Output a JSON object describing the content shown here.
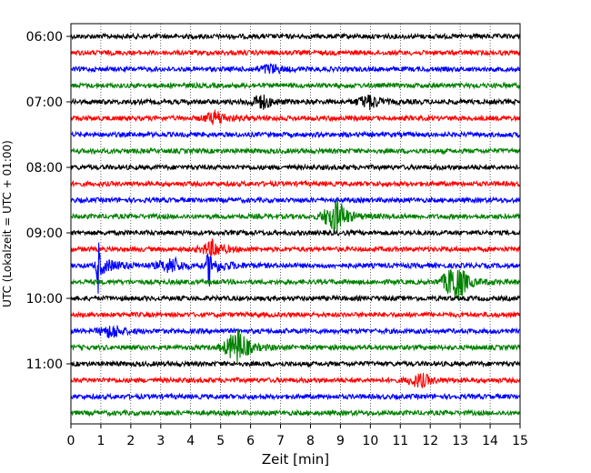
{
  "chart_data": {
    "type": "line",
    "subtype": "helicorder",
    "xlabel": "Zeit  [min]",
    "ylabel": "UTC (Lokalzeit = UTC + 01:00)",
    "xlim": [
      0,
      15
    ],
    "x_ticks": [
      0,
      1,
      2,
      3,
      4,
      5,
      6,
      7,
      8,
      9,
      10,
      11,
      12,
      13,
      14,
      15
    ],
    "x_tick_labels": [
      "0",
      "1",
      "2",
      "3",
      "4",
      "5",
      "6",
      "7",
      "8",
      "9",
      "10",
      "11",
      "12",
      "13",
      "14",
      "15"
    ],
    "x_grid": "dotted vertical at each minute",
    "y_tick_labels": [
      "06:00",
      "07:00",
      "08:00",
      "09:00",
      "10:00",
      "11:00"
    ],
    "trace_colors": [
      "#000000",
      "#ff0000",
      "#0000ff",
      "#008000"
    ],
    "traces": [
      {
        "start": "06:00",
        "color": "#000000",
        "events": []
      },
      {
        "start": "06:15",
        "color": "#ff0000",
        "events": []
      },
      {
        "start": "06:30",
        "color": "#0000ff",
        "events": [
          {
            "minute": 6.6,
            "amplitude": 0.2
          }
        ]
      },
      {
        "start": "06:45",
        "color": "#008000",
        "events": []
      },
      {
        "start": "07:00",
        "color": "#000000",
        "events": [
          {
            "minute": 6.3,
            "amplitude": 0.3
          },
          {
            "minute": 9.9,
            "amplitude": 0.3
          }
        ]
      },
      {
        "start": "07:15",
        "color": "#ff0000",
        "events": [
          {
            "minute": 4.8,
            "amplitude": 0.3
          }
        ]
      },
      {
        "start": "07:30",
        "color": "#0000ff",
        "events": []
      },
      {
        "start": "07:45",
        "color": "#008000",
        "events": []
      },
      {
        "start": "08:00",
        "color": "#000000",
        "events": []
      },
      {
        "start": "08:15",
        "color": "#ff0000",
        "events": []
      },
      {
        "start": "08:30",
        "color": "#0000ff",
        "events": []
      },
      {
        "start": "08:45",
        "color": "#008000",
        "events": [
          {
            "minute": 8.8,
            "amplitude": 0.8
          }
        ]
      },
      {
        "start": "09:00",
        "color": "#000000",
        "events": []
      },
      {
        "start": "09:15",
        "color": "#ff0000",
        "events": [
          {
            "minute": 4.7,
            "amplitude": 0.35
          }
        ]
      },
      {
        "start": "09:30",
        "color": "#0000ff",
        "events": [
          {
            "minute": 0.9,
            "amplitude": 1.2
          },
          {
            "minute": 3.3,
            "amplitude": 0.35
          },
          {
            "minute": 4.6,
            "amplitude": 1.0
          }
        ]
      },
      {
        "start": "09:45",
        "color": "#008000",
        "events": [
          {
            "minute": 12.8,
            "amplitude": 0.9
          }
        ]
      },
      {
        "start": "10:00",
        "color": "#000000",
        "events": []
      },
      {
        "start": "10:15",
        "color": "#ff0000",
        "events": []
      },
      {
        "start": "10:30",
        "color": "#0000ff",
        "events": [
          {
            "minute": 1.3,
            "amplitude": 0.3
          }
        ]
      },
      {
        "start": "10:45",
        "color": "#008000",
        "events": [
          {
            "minute": 5.5,
            "amplitude": 0.8
          }
        ]
      },
      {
        "start": "11:00",
        "color": "#000000",
        "events": []
      },
      {
        "start": "11:15",
        "color": "#ff0000",
        "events": [
          {
            "minute": 11.6,
            "amplitude": 0.3
          }
        ]
      },
      {
        "start": "11:30",
        "color": "#0000ff",
        "events": []
      },
      {
        "start": "11:45",
        "color": "#008000",
        "events": []
      }
    ]
  }
}
